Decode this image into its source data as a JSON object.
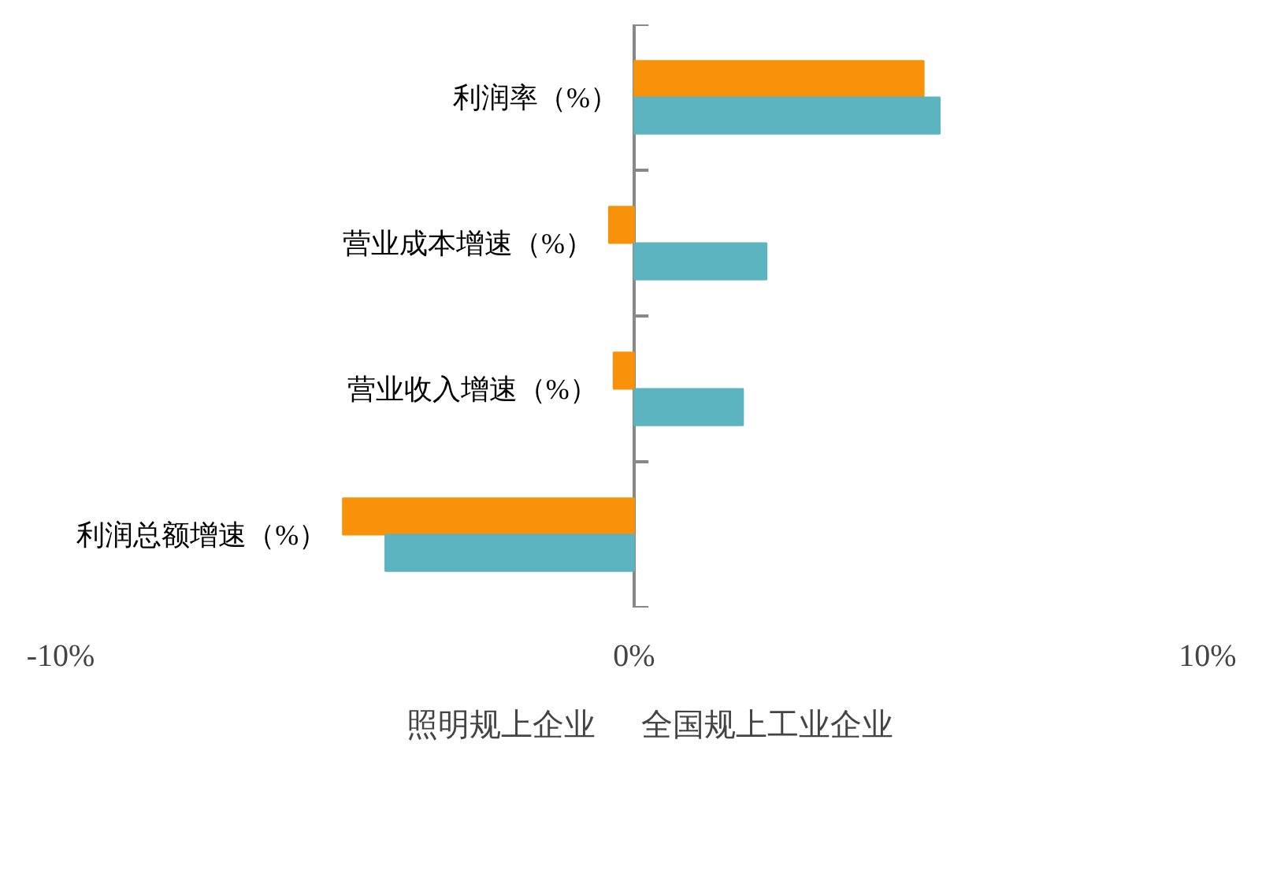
{
  "chart_data": {
    "type": "bar",
    "orientation": "horizontal",
    "categories": [
      "利润率（%）",
      "营业成本增速（%）",
      "营业收入增速（%）",
      "利润总额增速（%）"
    ],
    "series": [
      {
        "name": "照明规上企业",
        "color": "#f7920a",
        "values": [
          5.05,
          -0.44,
          -0.36,
          -5.08
        ]
      },
      {
        "name": "全国规上工业企业",
        "color": "#5bb4c0",
        "values": [
          5.33,
          2.31,
          1.9,
          -4.34
        ]
      }
    ],
    "xlim": [
      -10,
      10
    ],
    "xticks": [
      {
        "value": -10,
        "label": "-10%"
      },
      {
        "value": 0,
        "label": "0%"
      },
      {
        "value": 10,
        "label": "10%"
      }
    ],
    "grid": false,
    "legend": "bottom"
  }
}
